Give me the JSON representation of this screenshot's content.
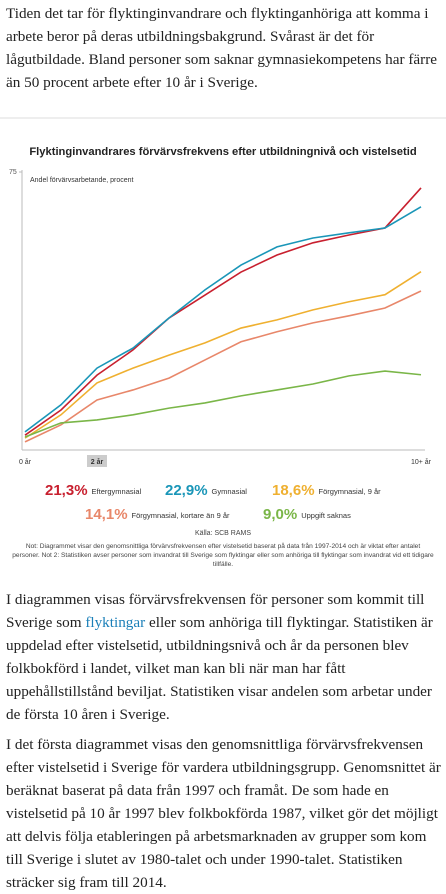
{
  "intro": "Tiden det tar för flyktinginvandrare och flyktinganhöriga att komma i arbete beror på deras utbildningsbakgrund. Svårast är det för lågutbildade. Bland personer som saknar gymnasiekompetens har färre än 50 procent arbete efter 10 år i Sverige.",
  "chart_data": {
    "type": "line",
    "title": "Flyktinginvandrares förvärvsfrekvens efter utbildningnivå och vistelsetid",
    "y_label": "Andel förvärvsarbetande, procent",
    "categories": [
      "0 år",
      null,
      "2 år",
      null,
      null,
      null,
      null,
      null,
      null,
      null,
      null,
      "10+ år"
    ],
    "highlight_category": 2,
    "ylim": [
      0,
      75
    ],
    "yticks": [
      75
    ],
    "series": [
      {
        "name": "Eftergymnasial",
        "color": "#c8202f",
        "share": 21.3,
        "share_label": "21,3%",
        "values": [
          4,
          10.8,
          20.2,
          27,
          35.6,
          41.8,
          48,
          52.6,
          55.9,
          58,
          59.9,
          70.7
        ]
      },
      {
        "name": "Gymnasial",
        "color": "#1a96b8",
        "share": 22.9,
        "share_label": "22,9%",
        "values": [
          4.9,
          12.2,
          22.1,
          27.5,
          35.6,
          43.2,
          49.9,
          54.8,
          57.2,
          58.6,
          59.9,
          65.6
        ]
      },
      {
        "name": "Förgymnasial, 9 år",
        "color": "#efb030",
        "share": 18.6,
        "share_label": "18,6%",
        "values": [
          3.2,
          9.5,
          18.1,
          22.1,
          25.6,
          28.9,
          32.9,
          35.1,
          37.8,
          40,
          41.9,
          48.1
        ]
      },
      {
        "name": "Förgymnasial, kortare än 9 år",
        "color": "#e8876a",
        "share": 14.1,
        "share_label": "14,1%",
        "values": [
          2.2,
          6.8,
          13.5,
          16.2,
          19.4,
          24.3,
          29.2,
          31.9,
          34.3,
          36.2,
          38.3,
          42.9
        ]
      },
      {
        "name": "Uppgift saknas",
        "color": "#7ab648",
        "share": 9.0,
        "share_label": "9,0%",
        "values": [
          3.5,
          7.3,
          8.1,
          9.5,
          11.3,
          12.7,
          14.6,
          16.2,
          17.8,
          20,
          21.3,
          20.3
        ]
      }
    ],
    "source": "Källa: SCB RAMS",
    "note": "Not: Diagrammet visar den genomsnittliga förvärvsfrekvensen efter vistelsetid baserat på data från 1997-2014 och är viktat efter antalet personer. Not 2: Statistiken avser personer som invandrat till Sverige som flyktingar eller som anhöriga till flyktingar som invandrat vid ett tidigare tillfälle."
  },
  "body": {
    "p1": [
      "I diagrammen visas förvärvsfrekvensen för personer som kommit till Sverige som ",
      "flyktingar",
      " eller som anhöriga till flyktingar. Statistiken är uppdelad efter vistelsetid, utbildningsnivå och år da personen blev folkbokförd i landet, vilket man kan bli när man har fått uppehållstillstånd beviljat. Statistiken visar andelen som arbetar under de första 10 åren i Sverige."
    ],
    "p2": "I det första diagrammet visas den genomsnittliga förvärvsfrekvensen efter vistelsetid i Sverige för vardera utbildningsgrupp. Genomsnittet är beräknat baserat på data från 1997 och framåt. De som hade en vistelsetid på 10 år 1997 blev folkbokförda 1987, vilket gör det möjligt att delvis följa etableringen på arbetsmarknaden av grupper som kom till Sverige i slutet av 1980-talet och under 1990-talet. Statistiken sträcker sig fram till 2014."
  }
}
